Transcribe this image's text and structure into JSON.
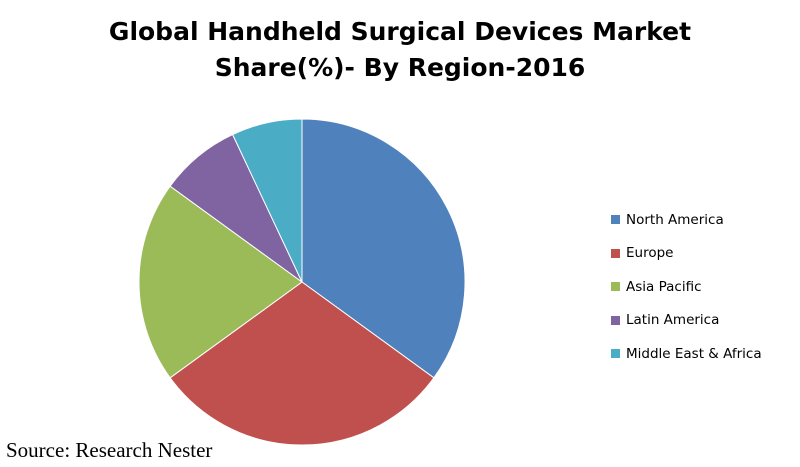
{
  "chart_data": {
    "type": "pie",
    "title_lines": [
      "Global Handheld Surgical Devices Market",
      "Share(%)- By Region-2016"
    ],
    "categories": [
      "North America",
      "Europe",
      "Asia Pacific",
      "Latin America",
      "Middle East & Africa"
    ],
    "values": [
      35,
      30,
      20,
      8,
      7
    ],
    "colors": [
      "#4f81bd",
      "#c0504d",
      "#9bbb59",
      "#8064a2",
      "#4bacc6"
    ],
    "legend_position": "right"
  },
  "source": "Source: Research Nester"
}
